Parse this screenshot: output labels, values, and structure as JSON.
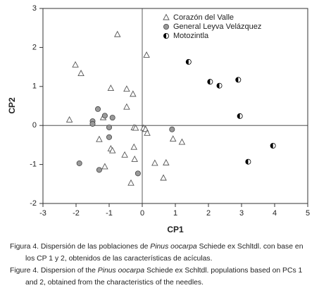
{
  "chart_data": {
    "type": "scatter",
    "xlabel": "CP1",
    "ylabel": "CP2",
    "xlim": [
      -3,
      5
    ],
    "ylim": [
      -2,
      3
    ],
    "xticks": [
      -3,
      -2,
      -1,
      0,
      1,
      2,
      3,
      4,
      5
    ],
    "yticks": [
      -2,
      -1,
      0,
      1,
      2,
      3
    ],
    "legend": "upper right",
    "series": [
      {
        "name": "Corazón del Valle",
        "marker": "triangle",
        "color": "#ffffff",
        "edge": "#555555",
        "x": [
          -0.75,
          0.13,
          -2.02,
          -1.85,
          -0.95,
          -0.47,
          -0.28,
          -0.47,
          -2.2,
          -1.18,
          -0.25,
          -0.2,
          0.04,
          0.1,
          0.15,
          -1.3,
          0.93,
          1.2,
          -0.25,
          -0.95,
          -0.9,
          -0.53,
          -0.23,
          0.38,
          0.72,
          -1.13,
          0.64,
          -0.34
        ],
        "y": [
          2.33,
          1.8,
          1.55,
          1.33,
          0.95,
          0.93,
          0.8,
          0.47,
          0.14,
          0.2,
          -0.06,
          -0.07,
          -0.07,
          -0.1,
          -0.2,
          -0.36,
          -0.35,
          -0.43,
          -0.56,
          -0.6,
          -0.65,
          -0.76,
          -0.87,
          -0.97,
          -0.96,
          -1.06,
          -1.35,
          -1.48
        ]
      },
      {
        "name": "General Leyva Velázquez",
        "marker": "circle",
        "color": "#9a9a9a",
        "edge": "#444444",
        "x": [
          -1.34,
          -1.13,
          -0.9,
          -1.5,
          -1.5,
          -1.0,
          -1.0,
          0.9,
          -1.9,
          -1.3,
          -0.13
        ],
        "y": [
          0.42,
          0.25,
          0.2,
          0.11,
          0.04,
          -0.05,
          -0.3,
          -0.1,
          -0.97,
          -1.14,
          -1.23
        ]
      },
      {
        "name": "Motozintla",
        "marker": "half-circle",
        "color": "#000000",
        "edge": "#000000",
        "x": [
          1.4,
          2.05,
          2.33,
          2.9,
          2.95,
          3.95,
          3.2
        ],
        "y": [
          1.63,
          1.12,
          1.02,
          1.17,
          0.24,
          -0.52,
          -0.93
        ]
      }
    ]
  },
  "caption": [
    [
      "Figura 4. Dispersión de las poblaciones de ",
      "Pinus oocarpa",
      " Schiede ex Schltdl. con base en los CP 1 y 2, obtenidos de las características de acículas."
    ],
    [
      "Figure 4. Dispersion of the ",
      "Pinus oocarpa",
      " Schiede ex Schltdl. populations based on PCs 1 and 2, obtained from the characteristics of the needles."
    ]
  ]
}
